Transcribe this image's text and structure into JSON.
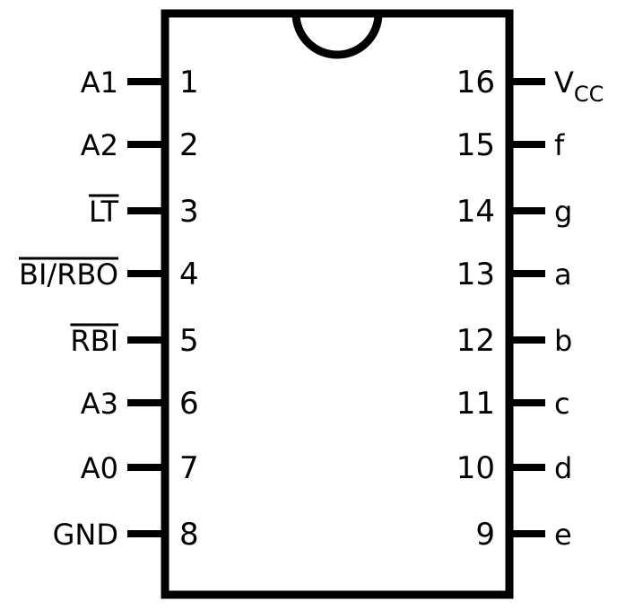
{
  "chip": {
    "left_pins": [
      {
        "number": "1",
        "name": "A1",
        "overbar": false
      },
      {
        "number": "2",
        "name": "A2",
        "overbar": false
      },
      {
        "number": "3",
        "name": "LT",
        "overbar": true
      },
      {
        "number": "4",
        "name": "BI/RBO",
        "overbar": true
      },
      {
        "number": "5",
        "name": "RBI",
        "overbar": true
      },
      {
        "number": "6",
        "name": "A3",
        "overbar": false
      },
      {
        "number": "7",
        "name": "A0",
        "overbar": false
      },
      {
        "number": "8",
        "name": "GND",
        "overbar": false
      }
    ],
    "right_pins": [
      {
        "number": "16",
        "name": "V",
        "subscript": "CC",
        "overbar": false
      },
      {
        "number": "15",
        "name": "f",
        "overbar": false
      },
      {
        "number": "14",
        "name": "g",
        "overbar": false
      },
      {
        "number": "13",
        "name": "a",
        "overbar": false
      },
      {
        "number": "12",
        "name": "b",
        "overbar": false
      },
      {
        "number": "11",
        "name": "c",
        "overbar": false
      },
      {
        "number": "10",
        "name": "d",
        "overbar": false
      },
      {
        "number": "9",
        "name": "e",
        "overbar": false
      }
    ]
  },
  "colors": {
    "stroke": "#000000",
    "background": "#ffffff"
  }
}
